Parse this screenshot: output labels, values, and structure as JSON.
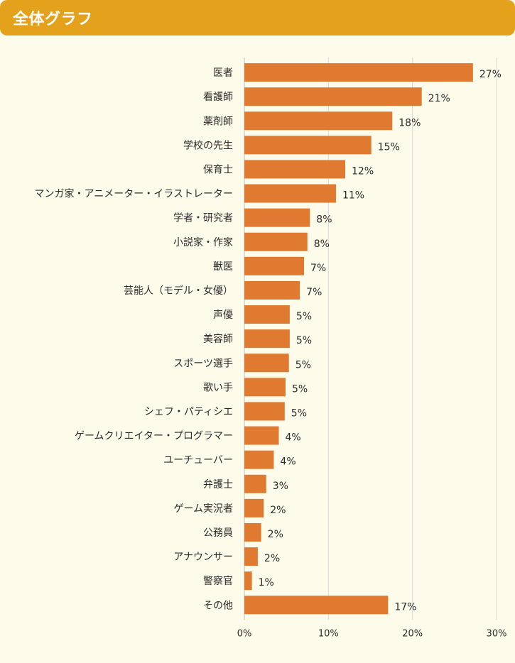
{
  "header": {
    "title": "全体グラフ"
  },
  "colors": {
    "header_bg": "#e3a11c",
    "bar": "#e07a31",
    "grid": "#d9d9d9",
    "axis": "#bfbfbf",
    "background": "#fdfbea"
  },
  "chart_data": {
    "type": "bar",
    "orientation": "horizontal",
    "title": "全体グラフ",
    "categories": [
      "医者",
      "看護師",
      "薬剤師",
      "学校の先生",
      "保育士",
      "マンガ家・アニメーター・イラストレーター",
      "学者・研究者",
      "小説家・作家",
      "獣医",
      "芸能人（モデル・女優）",
      "声優",
      "美容師",
      "スポーツ選手",
      "歌い手",
      "シェフ・パティシエ",
      "ゲームクリエイター・プログラマー",
      "ユーチューバー",
      "弁護士",
      "ゲーム実況者",
      "公務員",
      "アナウンサー",
      "警察官",
      "その他"
    ],
    "values": [
      27.2,
      21.1,
      17.6,
      15.1,
      12.0,
      10.9,
      7.8,
      7.5,
      7.1,
      6.6,
      5.4,
      5.4,
      5.3,
      4.9,
      4.8,
      4.1,
      3.5,
      2.6,
      2.3,
      2.0,
      1.6,
      0.9,
      17.1
    ],
    "value_labels": [
      "27%",
      "21%",
      "18%",
      "15%",
      "12%",
      "11%",
      "8%",
      "8%",
      "7%",
      "7%",
      "5%",
      "5%",
      "5%",
      "5%",
      "5%",
      "4%",
      "4%",
      "3%",
      "2%",
      "2%",
      "2%",
      "1%",
      "17%"
    ],
    "xlim": [
      0,
      30
    ],
    "xticks": [
      0,
      10,
      20,
      30
    ],
    "xtick_labels": [
      "0%",
      "10%",
      "20%",
      "30%"
    ],
    "grid": true,
    "xlabel": "",
    "ylabel": ""
  }
}
